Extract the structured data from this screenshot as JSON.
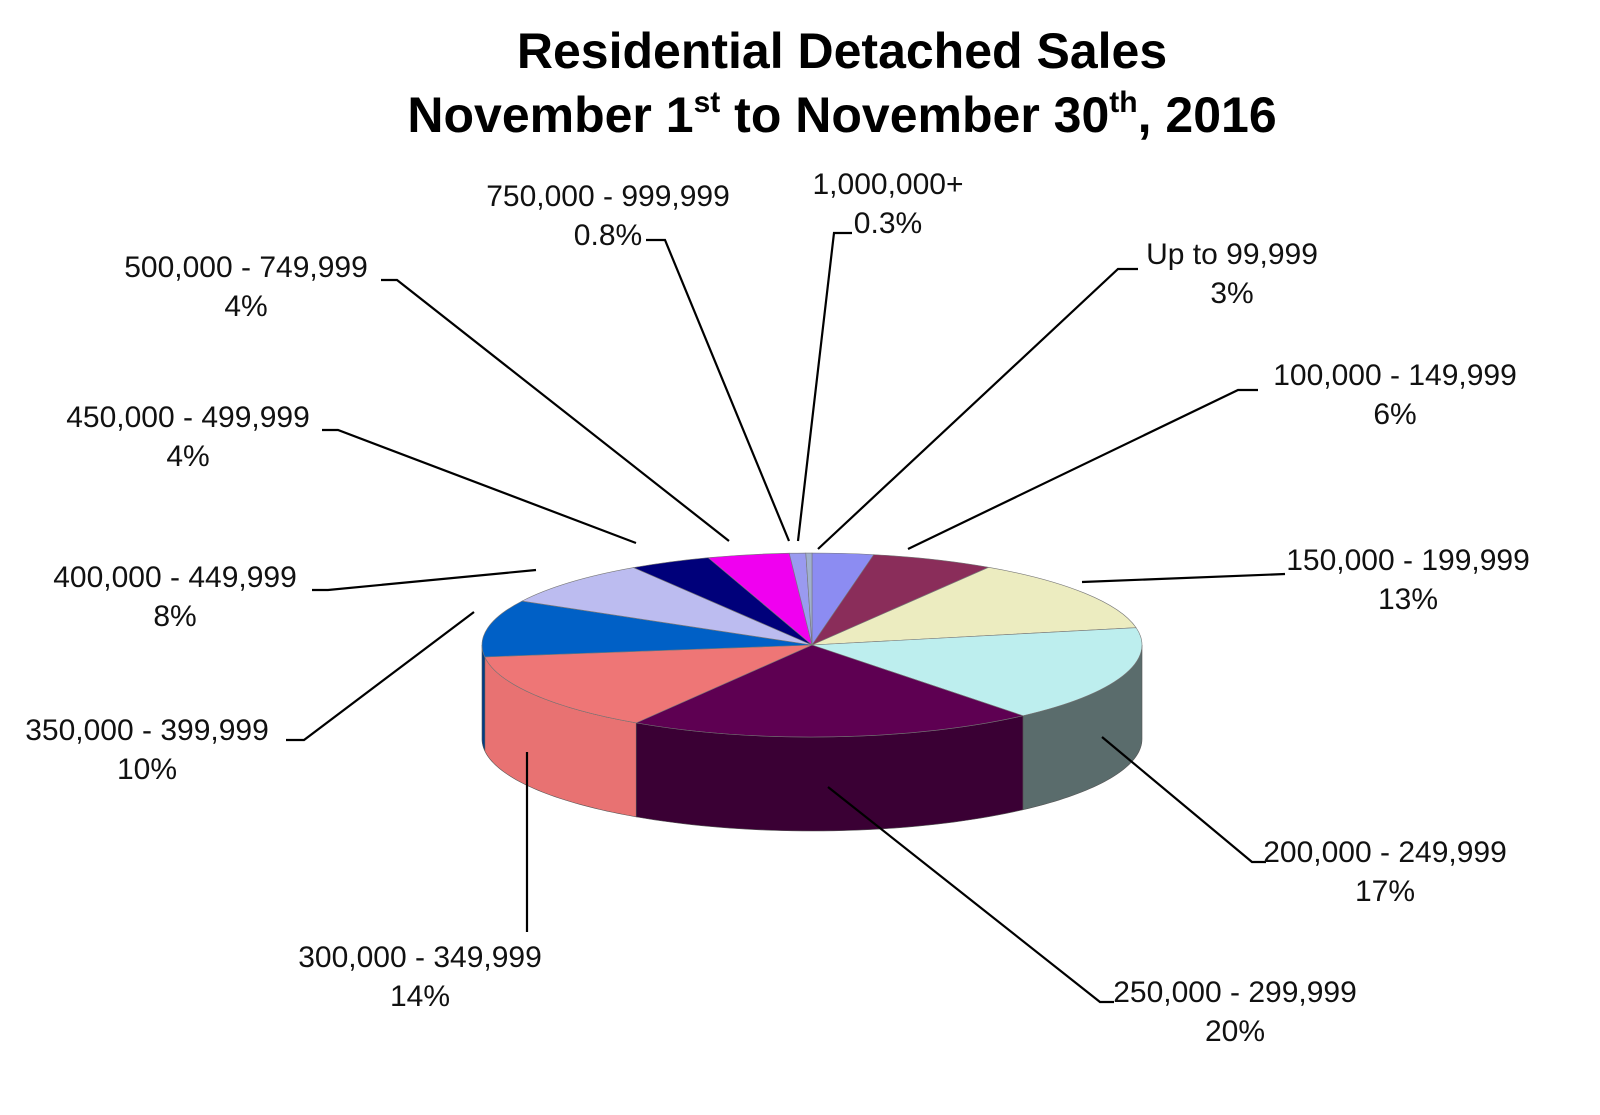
{
  "chart_data": {
    "type": "pie",
    "title": {
      "line1": "Residential Detached Sales",
      "line2_part1": "November 1",
      "line2_sup1": "st",
      "line2_part2": " to November 30",
      "line2_sup2": "th",
      "line2_part3": ", 2016"
    },
    "slices": [
      {
        "label": "Up to 99,999",
        "pct_label": "3%",
        "value": 3,
        "color": "#8c8cf2",
        "side": "#4a4a9a"
      },
      {
        "label": "100,000 - 149,999",
        "pct_label": "6%",
        "value": 6,
        "color": "#8a2d5a",
        "side": "#4f1532"
      },
      {
        "label": "150,000 - 199,999",
        "pct_label": "13%",
        "value": 13,
        "color": "#ececc0",
        "side": "#8d8d6e"
      },
      {
        "label": "200,000 - 249,999",
        "pct_label": "17%",
        "value": 17,
        "color": "#bdeeee",
        "side": "#5a6c6c"
      },
      {
        "label": "250,000 - 299,999",
        "pct_label": "20%",
        "value": 20,
        "color": "#5e0052",
        "side": "#3a0034"
      },
      {
        "label": "300,000 - 349,999",
        "pct_label": "14%",
        "value": 14,
        "color": "#ee7676",
        "side": "#e87272"
      },
      {
        "label": "350,000 - 399,999",
        "pct_label": "10%",
        "value": 10,
        "color": "#0060c6",
        "side": "#003c86"
      },
      {
        "label": "400,000 - 449,999",
        "pct_label": "8%",
        "value": 8,
        "color": "#bcbcf0",
        "side": "#7a7aa8"
      },
      {
        "label": "450,000 - 499,999",
        "pct_label": "4%",
        "value": 4,
        "color": "#00007a",
        "side": "#00004a"
      },
      {
        "label": "500,000 - 749,999",
        "pct_label": "4%",
        "value": 4,
        "color": "#f000f0",
        "side": "#9a009a"
      },
      {
        "label": "750,000 - 999,999",
        "pct_label": "0.8%",
        "value": 0.8,
        "color": "#9a9af0",
        "side": "#5a5aa0"
      },
      {
        "label": "1,000,000+",
        "pct_label": "0.3%",
        "value": 0.3,
        "color": "#a0b0d0",
        "side": "#607090"
      }
    ]
  }
}
